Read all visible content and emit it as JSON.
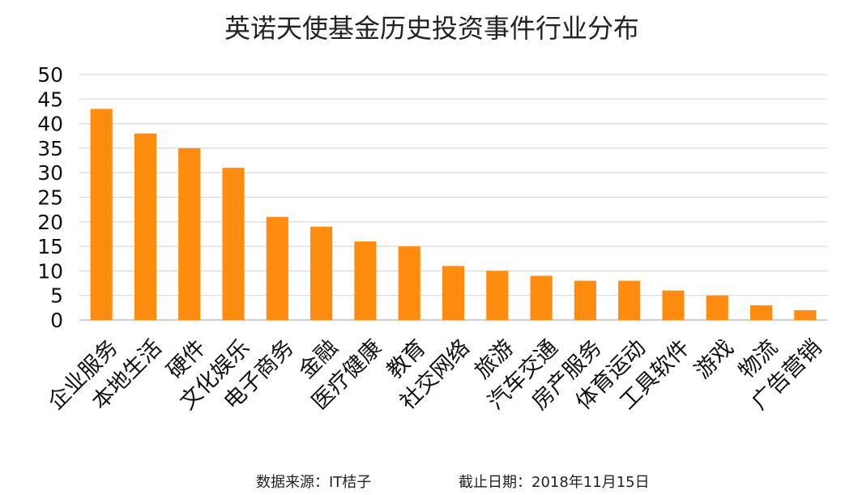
{
  "chart_data": {
    "type": "bar",
    "title": "英诺天使基金历史投资事件行业分布",
    "xlabel": "",
    "ylabel": "",
    "categories": [
      "企业服务",
      "本地生活",
      "硬件",
      "文化娱乐",
      "电子商务",
      "金融",
      "医疗健康",
      "教育",
      "社交网络",
      "旅游",
      "汽车交通",
      "房产服务",
      "体育运动",
      "工具软件",
      "游戏",
      "物流",
      "广告营销"
    ],
    "values": [
      43,
      38,
      35,
      31,
      21,
      19,
      16,
      15,
      11,
      10,
      9,
      8,
      8,
      6,
      5,
      3,
      2
    ],
    "ylim": [
      0,
      50
    ],
    "yticks": [
      0,
      5,
      10,
      15,
      20,
      25,
      30,
      35,
      40,
      45,
      50
    ],
    "grid": true,
    "legend": "none",
    "bar_color": "#FF8C0F"
  },
  "footer": {
    "source": "数据来源：IT桔子",
    "date": "截止日期：2018年11月15日"
  }
}
